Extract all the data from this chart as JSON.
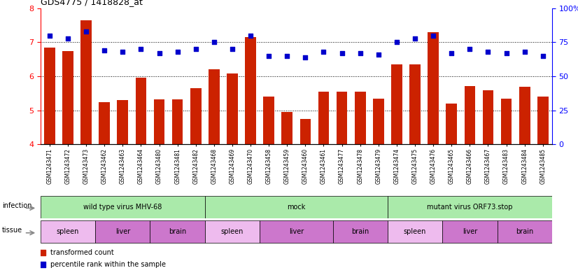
{
  "title": "GDS4775 / 1418828_at",
  "samples": [
    "GSM1243471",
    "GSM1243472",
    "GSM1243473",
    "GSM1243462",
    "GSM1243463",
    "GSM1243464",
    "GSM1243480",
    "GSM1243481",
    "GSM1243482",
    "GSM1243468",
    "GSM1243469",
    "GSM1243470",
    "GSM1243458",
    "GSM1243459",
    "GSM1243460",
    "GSM1243461",
    "GSM1243477",
    "GSM1243478",
    "GSM1243479",
    "GSM1243474",
    "GSM1243475",
    "GSM1243476",
    "GSM1243465",
    "GSM1243466",
    "GSM1243467",
    "GSM1243483",
    "GSM1243484",
    "GSM1243485"
  ],
  "bar_values": [
    6.85,
    6.75,
    7.65,
    5.25,
    5.3,
    5.95,
    5.33,
    5.33,
    5.65,
    6.2,
    6.08,
    7.15,
    5.4,
    4.95,
    4.75,
    5.55,
    5.55,
    5.55,
    5.35,
    6.35,
    6.35,
    7.3,
    5.2,
    5.72,
    5.58,
    5.35,
    5.7,
    5.4
  ],
  "dot_values": [
    80,
    78,
    83,
    69,
    68,
    70,
    67,
    68,
    70,
    75,
    70,
    80,
    65,
    65,
    64,
    68,
    67,
    67,
    66,
    75,
    78,
    80,
    67,
    70,
    68,
    67,
    68,
    65
  ],
  "bar_color": "#cc2200",
  "dot_color": "#0000cc",
  "ylim_left": [
    4,
    8
  ],
  "ylim_right": [
    0,
    100
  ],
  "yticks_left": [
    4,
    5,
    6,
    7,
    8
  ],
  "yticks_right": [
    0,
    25,
    50,
    75,
    100
  ],
  "infection_groups": [
    {
      "label": "wild type virus MHV-68",
      "start": 0,
      "end": 9,
      "color": "#aaeaaa"
    },
    {
      "label": "mock",
      "start": 9,
      "end": 19,
      "color": "#aaeaaa"
    },
    {
      "label": "mutant virus ORF73.stop",
      "start": 19,
      "end": 28,
      "color": "#aaeaaa"
    }
  ],
  "tissue_groups": [
    {
      "label": "spleen",
      "start": 0,
      "end": 3,
      "color": "#eebbee"
    },
    {
      "label": "liver",
      "start": 3,
      "end": 6,
      "color": "#dd88dd"
    },
    {
      "label": "brain",
      "start": 6,
      "end": 9,
      "color": "#dd88dd"
    },
    {
      "label": "spleen",
      "start": 9,
      "end": 12,
      "color": "#eebbee"
    },
    {
      "label": "liver",
      "start": 12,
      "end": 16,
      "color": "#dd88dd"
    },
    {
      "label": "brain",
      "start": 16,
      "end": 19,
      "color": "#dd88dd"
    },
    {
      "label": "spleen",
      "start": 19,
      "end": 22,
      "color": "#eebbee"
    },
    {
      "label": "liver",
      "start": 22,
      "end": 25,
      "color": "#dd88dd"
    },
    {
      "label": "brain",
      "start": 25,
      "end": 28,
      "color": "#dd88dd"
    }
  ],
  "legend_bar_label": "transformed count",
  "legend_dot_label": "percentile rank within the sample",
  "infection_label": "infection",
  "tissue_label": "tissue",
  "xtick_bg_color": "#cccccc"
}
